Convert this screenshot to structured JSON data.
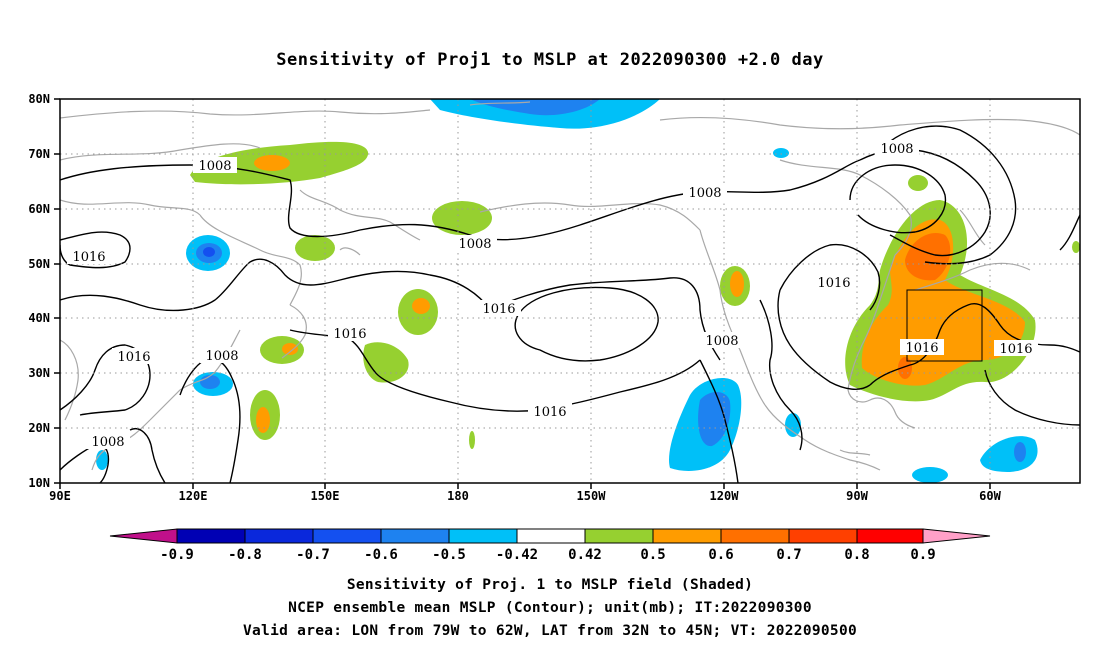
{
  "title": "Sensitivity of Proj1 to MSLP at 2022090300 +2.0 day",
  "map": {
    "lat_labels": [
      "80N",
      "70N",
      "60N",
      "50N",
      "40N",
      "30N",
      "20N",
      "10N"
    ],
    "lon_labels": [
      "90E",
      "120E",
      "150E",
      "180",
      "150W",
      "120W",
      "90W",
      "60W"
    ],
    "contour_labels": {
      "c1008_a": "1008",
      "c1008_b": "1008",
      "c1008_c": "1008",
      "c1008_d": "1008",
      "c1008_e": "1008",
      "c1008_f": "1008",
      "c1008_g": "1008",
      "c1016_a": "1016",
      "c1016_b": "1016",
      "c1016_c": "1016",
      "c1016_d": "1016",
      "c1016_e": "1016",
      "c1016_f": "1016",
      "c1016_g": "1016",
      "c1016_h": "1016"
    },
    "valid_area": {
      "lon_from": "79W",
      "lon_to": "62W",
      "lat_from": "32N",
      "lat_to": "45N"
    }
  },
  "colorbar": {
    "labels": [
      "-0.9",
      "-0.8",
      "-0.7",
      "-0.6",
      "-0.5",
      "-0.42",
      "0.42",
      "0.5",
      "0.6",
      "0.7",
      "0.8",
      "0.9"
    ],
    "colors": {
      "lt_m09": "#c0108a",
      "m09_m08": "#0000b4",
      "m08_m07": "#0a28dc",
      "m07_m06": "#1450f0",
      "m06_m05": "#1e82f0",
      "m05_m042": "#00c0f8",
      "m042_042": "#ffffff",
      "p042_05": "#96d030",
      "p05_06": "#ff9c00",
      "p06_07": "#ff7000",
      "p07_08": "#ff4000",
      "p08_09": "#ff0000",
      "gt_09": "#ffa0c8"
    }
  },
  "caption": {
    "line1": "Sensitivity of Proj. 1 to MSLP field (Shaded)",
    "line2": "NCEP ensemble mean MSLP (Contour); unit(mb); IT:2022090300",
    "line3": "Valid area: LON from 79W to 62W, LAT from 32N to 45N; VT: 2022090500"
  }
}
